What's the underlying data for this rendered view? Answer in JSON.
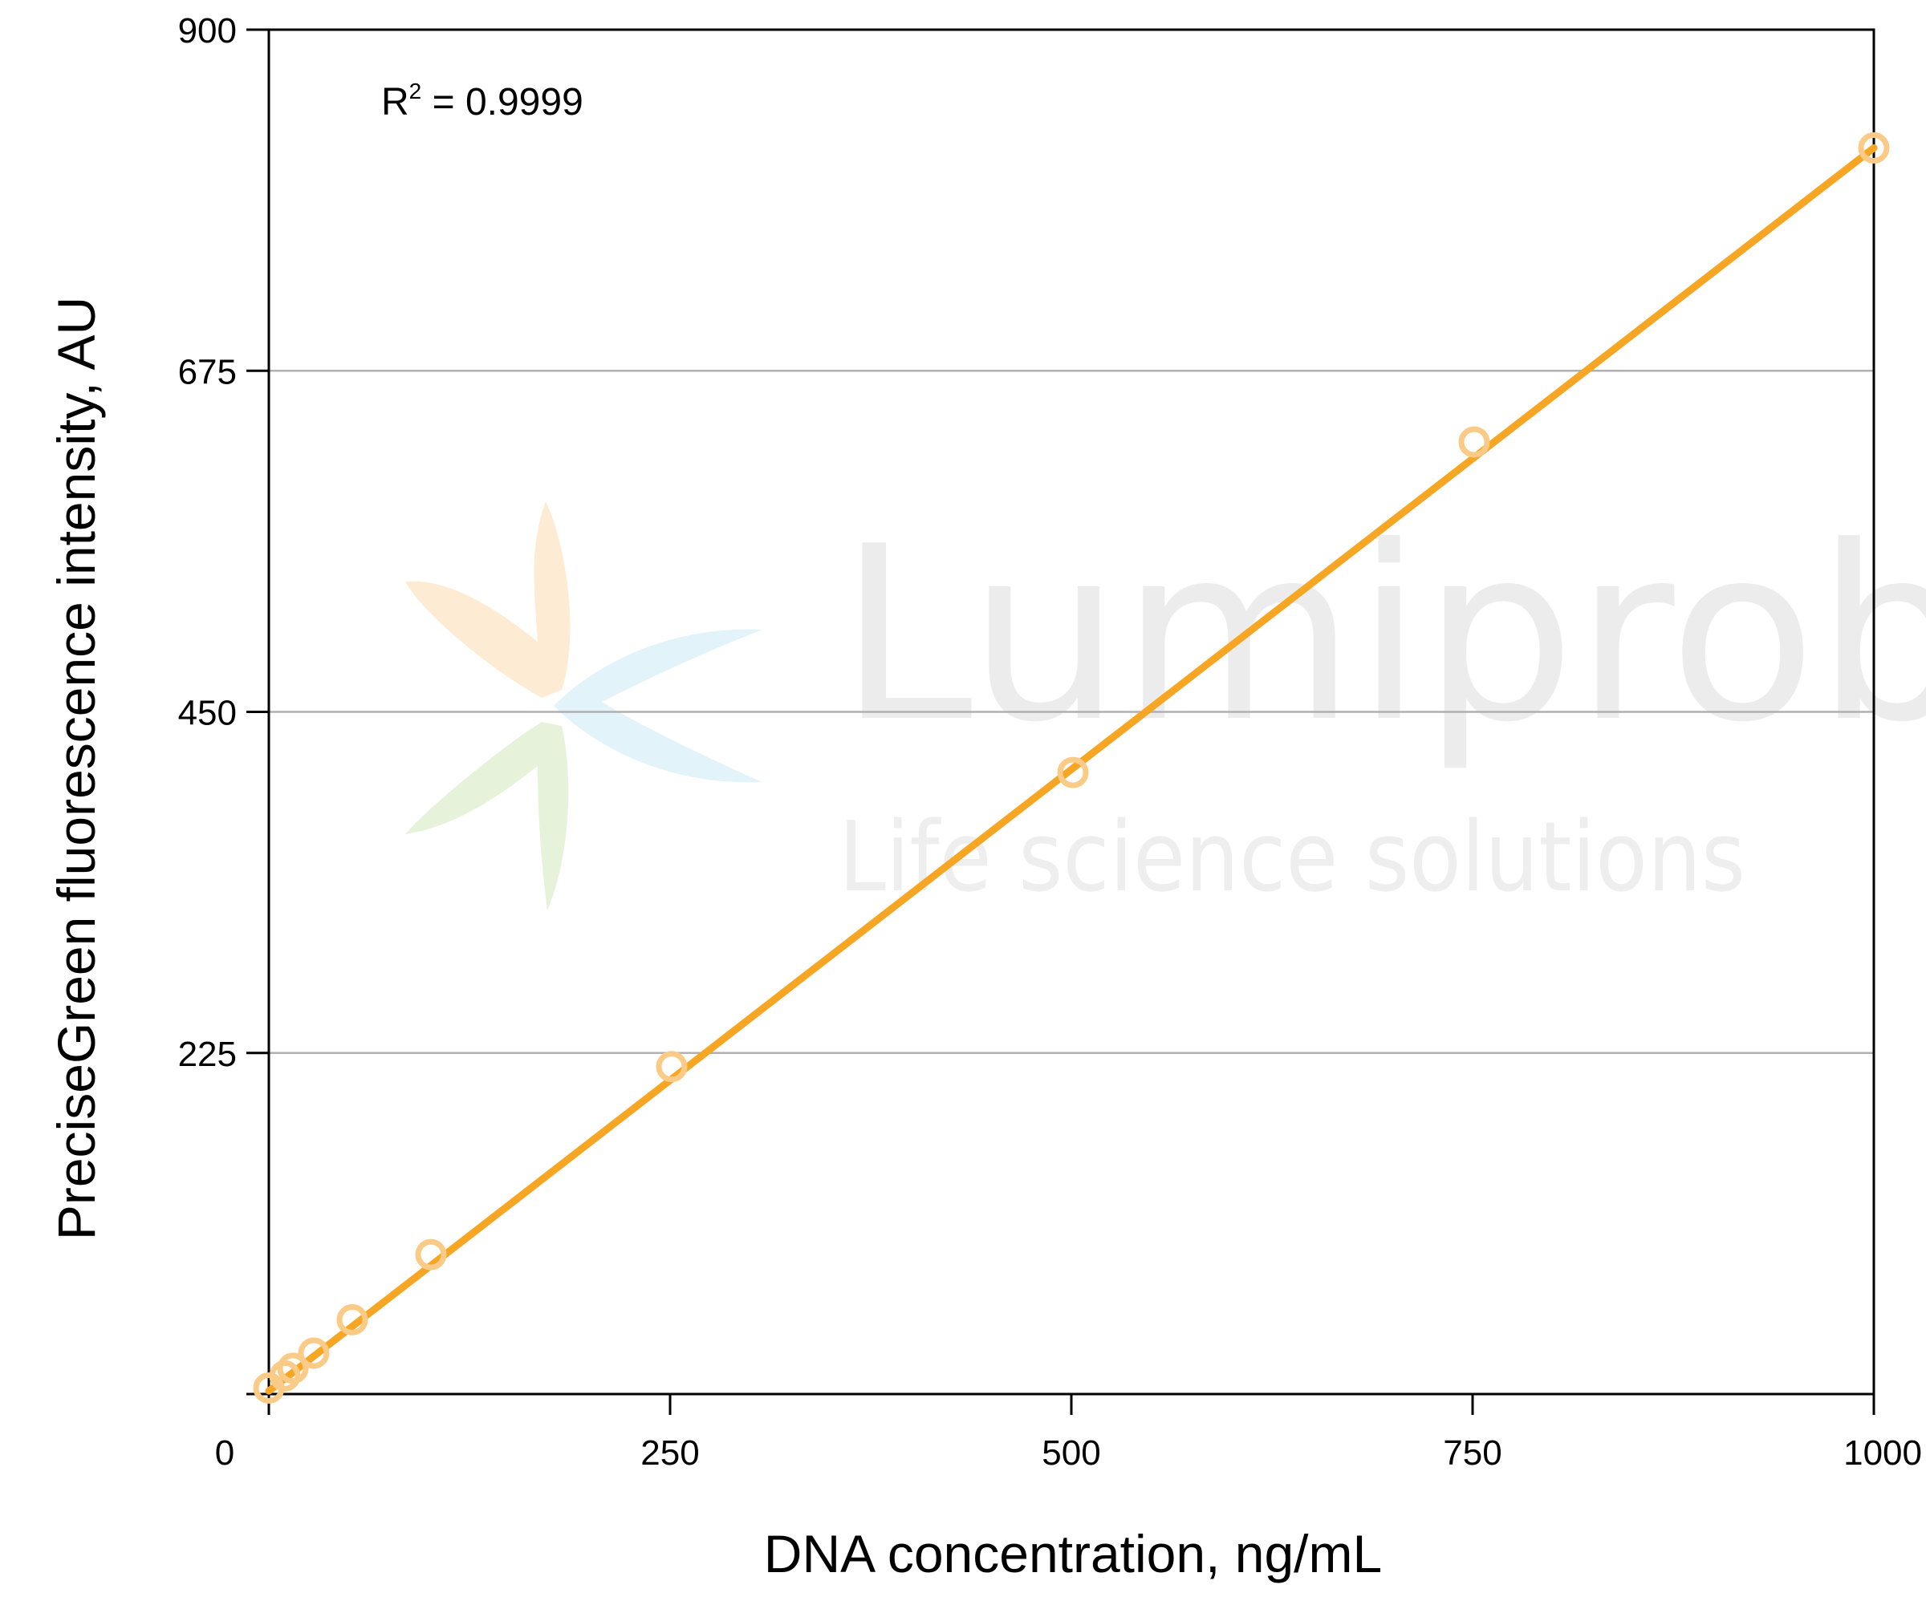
{
  "chart_data": {
    "type": "scatter",
    "xlabel": "DNA concentration, ng/mL",
    "ylabel": "PreciseGreen fluorescence intensity, AU",
    "xlim": [
      0,
      1000
    ],
    "ylim": [
      0,
      900
    ],
    "x_ticks": [
      "0",
      "250",
      "500",
      "750",
      "1000"
    ],
    "y_ticks": [
      "225",
      "450",
      "675",
      "900"
    ],
    "grid": "horizontal",
    "annotation": {
      "label": "R",
      "superscript": "2",
      "text": " = 0.9999"
    },
    "points": [
      {
        "x": 0,
        "y": 4
      },
      {
        "x": 10,
        "y": 12
      },
      {
        "x": 15,
        "y": 17
      },
      {
        "x": 28,
        "y": 27
      },
      {
        "x": 52,
        "y": 49
      },
      {
        "x": 101,
        "y": 92
      },
      {
        "x": 251,
        "y": 216
      },
      {
        "x": 501,
        "y": 410
      },
      {
        "x": 751,
        "y": 628
      },
      {
        "x": 1000,
        "y": 822
      }
    ],
    "fit_line": {
      "x": [
        0,
        1000
      ],
      "y": [
        2,
        822
      ]
    },
    "colors": {
      "fit_line": "#f6a623",
      "markers": "#f9cb87",
      "grid": "#b0b0b0"
    },
    "watermark": {
      "title": "Lumiprobe",
      "subtitle": "Life science solutions"
    }
  }
}
